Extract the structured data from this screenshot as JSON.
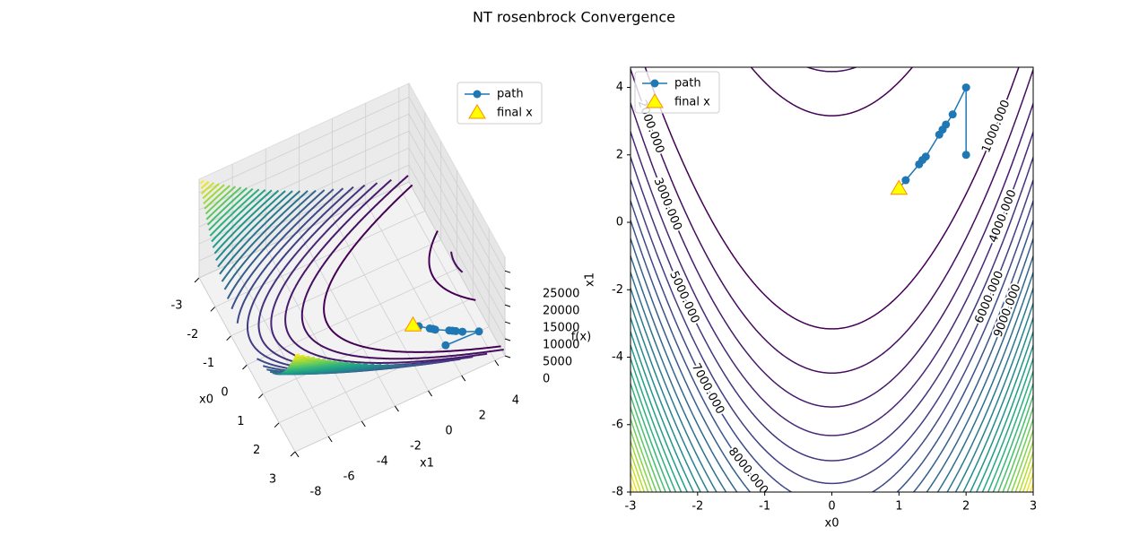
{
  "suptitle": "NT rosenbrock Convergence",
  "chart_data": [
    {
      "type": "contour3d",
      "xlabel": "x0",
      "ylabel": "x1",
      "zlabel": "f(x)",
      "xlim": [
        -3,
        3
      ],
      "ylim": [
        -8,
        4.6
      ],
      "zlim": [
        0,
        29000
      ],
      "xticks": [
        -3,
        -2,
        -1,
        0,
        1,
        2,
        3
      ],
      "yticks": [
        -8,
        -6,
        -4,
        -2,
        0,
        2,
        4
      ],
      "zticks": [
        0,
        5000,
        10000,
        15000,
        20000,
        25000
      ],
      "colormap": "viridis",
      "grid": true,
      "legend": "upper right",
      "levels": [
        1000,
        2000,
        3000,
        4000,
        5000,
        6000,
        7000,
        8000,
        9000,
        10000,
        11000,
        12000,
        13000,
        14000,
        15000,
        16000,
        17000,
        18000,
        19000,
        20000,
        21000,
        22000,
        23000,
        24000,
        25000,
        26000,
        27000,
        28000
      ],
      "series": [
        {
          "name": "path",
          "color": "#1f77b4",
          "marker": "o",
          "x": [
            2,
            2,
            1.8,
            1.7,
            1.65,
            1.6,
            1.4,
            1.35,
            1.3,
            1.1,
            1
          ],
          "y": [
            2,
            4,
            3.2,
            2.9,
            2.75,
            2.6,
            1.95,
            1.85,
            1.72,
            1.25,
            1
          ],
          "z": [
            401,
            1,
            0.8,
            0.5,
            0.4,
            0.4,
            0.2,
            0.1,
            0.1,
            0,
            0
          ]
        },
        {
          "name": "final x",
          "color": "#ffff00",
          "edgecolor": "#ff8c00",
          "marker": "^",
          "x": [
            1
          ],
          "y": [
            1
          ],
          "z": [
            0
          ]
        }
      ]
    },
    {
      "type": "contour",
      "xlabel": "x0",
      "ylabel": "x1",
      "xlim": [
        -3,
        3
      ],
      "ylim": [
        -8,
        4.6
      ],
      "xticks": [
        -3,
        -2,
        -1,
        0,
        1,
        2,
        3
      ],
      "yticks": [
        -8,
        -6,
        -4,
        -2,
        0,
        2,
        4
      ],
      "colormap": "viridis",
      "legend": "upper left",
      "levels": [
        1000,
        2000,
        3000,
        4000,
        5000,
        6000,
        7000,
        8000,
        9000,
        10000,
        11000,
        12000,
        13000,
        14000,
        15000,
        16000,
        17000,
        18000,
        19000,
        20000,
        21000,
        22000,
        23000,
        24000,
        25000,
        26000,
        27000,
        28000
      ],
      "contour_labels": [
        {
          "value": 1000,
          "label": "1000.000"
        },
        {
          "value": 2000,
          "label": "2000.000"
        },
        {
          "value": 3000,
          "label": "3000.000"
        },
        {
          "value": 4000,
          "label": "4000.000"
        },
        {
          "value": 5000,
          "label": "5000.000"
        },
        {
          "value": 6000,
          "label": "6000.000"
        },
        {
          "value": 7000,
          "label": "7000.000"
        },
        {
          "value": 8000,
          "label": "8000.000"
        },
        {
          "value": 9000,
          "label": "9000.000"
        }
      ],
      "series": [
        {
          "name": "path",
          "color": "#1f77b4",
          "marker": "o",
          "x": [
            2,
            2,
            1.8,
            1.7,
            1.65,
            1.6,
            1.4,
            1.35,
            1.3,
            1.1,
            1
          ],
          "y": [
            2,
            4,
            3.2,
            2.9,
            2.75,
            2.6,
            1.95,
            1.85,
            1.72,
            1.25,
            1
          ]
        },
        {
          "name": "final x",
          "color": "#ffff00",
          "edgecolor": "#ff8c00",
          "marker": "^",
          "x": [
            1
          ],
          "y": [
            1
          ]
        }
      ]
    }
  ]
}
